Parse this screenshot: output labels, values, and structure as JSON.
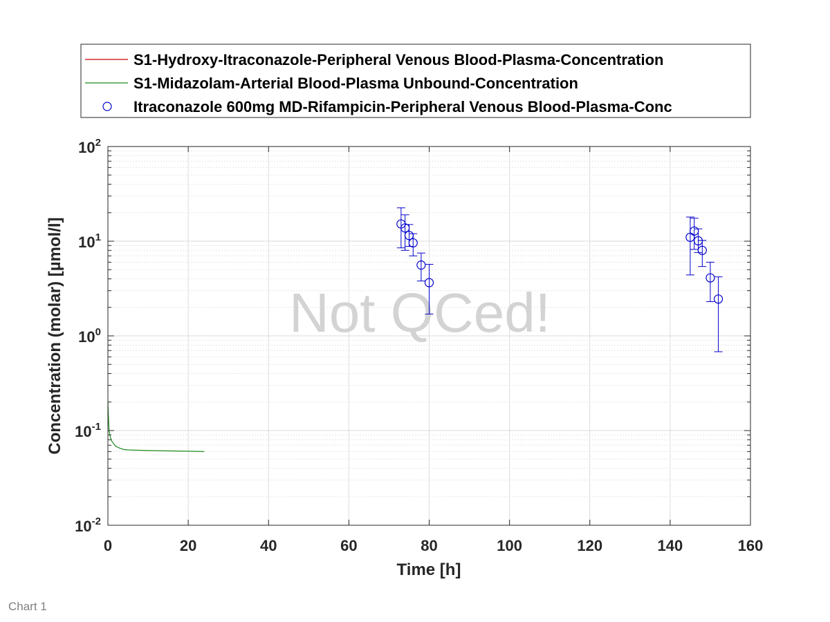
{
  "caption": "Chart 1",
  "chart_data": {
    "type": "scatter",
    "xlabel": "Time [h]",
    "ylabel": "Concentration (molar) [µmol/l]",
    "xlim": [
      0,
      160
    ],
    "ylim": [
      0.01,
      100
    ],
    "yscale": "log",
    "x_ticks": [
      "0",
      "20",
      "40",
      "60",
      "80",
      "100",
      "120",
      "140",
      "160"
    ],
    "y_tick_base": "10",
    "y_tick_exponents": [
      "-2",
      "-1",
      "0",
      "1",
      "2"
    ],
    "grid": true,
    "legend_position": "top",
    "watermark": "Not QCed!",
    "colors": {
      "line1": "#cc0000",
      "line2": "#1a8a1a",
      "observed": "#0000cc"
    },
    "series": [
      {
        "name": "S1-Hydroxy-Itraconazole-Peripheral Venous Blood-Plasma-Concentration",
        "kind": "line",
        "x": [],
        "y": []
      },
      {
        "name": "S1-Midazolam-Arterial Blood-Plasma Unbound-Concentration",
        "kind": "line",
        "x": [
          0,
          0.1,
          0.3,
          0.6,
          1,
          1.5,
          2,
          3,
          4,
          5,
          7,
          10,
          15,
          20,
          24
        ],
        "y": [
          0.2,
          0.15,
          0.1,
          0.085,
          0.077,
          0.072,
          0.068,
          0.065,
          0.063,
          0.0625,
          0.062,
          0.0615,
          0.061,
          0.0605,
          0.06
        ]
      },
      {
        "name": "Itraconazole 600mg MD-Rifampicin-Peripheral Venous Blood-Plasma-Conc",
        "kind": "scatter",
        "x": [
          73,
          74,
          75,
          76,
          78,
          80,
          145,
          146,
          147,
          148,
          150,
          152
        ],
        "y": [
          15.2,
          13.8,
          11.5,
          9.6,
          5.6,
          3.65,
          11.0,
          12.8,
          10.1,
          8.0,
          4.1,
          2.45
        ],
        "y_lower": [
          8.5,
          8.0,
          8.8,
          7.0,
          3.8,
          1.7,
          4.4,
          8.2,
          7.6,
          5.4,
          2.3,
          0.68
        ],
        "y_upper": [
          22.5,
          19.0,
          15.0,
          12.0,
          7.5,
          5.7,
          18.0,
          17.5,
          13.5,
          10.2,
          6.0,
          4.2
        ]
      }
    ]
  }
}
